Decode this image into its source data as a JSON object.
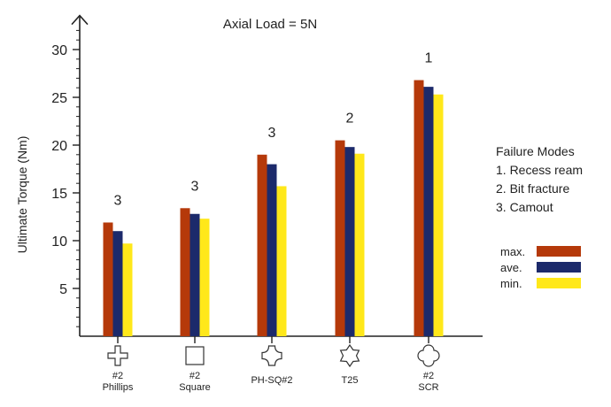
{
  "chart_data": {
    "type": "bar",
    "title": "Axial Load = 5N",
    "xlabel": "",
    "ylabel": "Ultimate Torque (Nm)",
    "ylim": [
      0,
      33
    ],
    "yticks": [
      5,
      10,
      15,
      20,
      25,
      30
    ],
    "categories": [
      "#2\nPhillips",
      "#2\nSquare",
      "PH-SQ#2",
      "T25",
      "#2\nSCR"
    ],
    "category_icons": [
      "cross-icon",
      "square-icon",
      "cross-rounded-icon",
      "star-icon",
      "clover-icon"
    ],
    "failure_mode_labels": [
      "3",
      "3",
      "3",
      "2",
      "1"
    ],
    "series": [
      {
        "name": "max.",
        "color": "#b5390a",
        "values": [
          11.9,
          13.4,
          19.0,
          20.5,
          26.8
        ]
      },
      {
        "name": "ave.",
        "color": "#1c2a6b",
        "values": [
          11.0,
          12.8,
          18.0,
          19.8,
          26.1
        ]
      },
      {
        "name": "min.",
        "color": "#ffe81a",
        "values": [
          9.7,
          12.3,
          15.7,
          19.1,
          25.3
        ]
      }
    ],
    "legend_position": "right",
    "grid": false
  },
  "failure_modes": {
    "title": "Failure Modes",
    "items": [
      "1. Recess ream",
      "2. Bit fracture",
      "3. Camout"
    ]
  }
}
